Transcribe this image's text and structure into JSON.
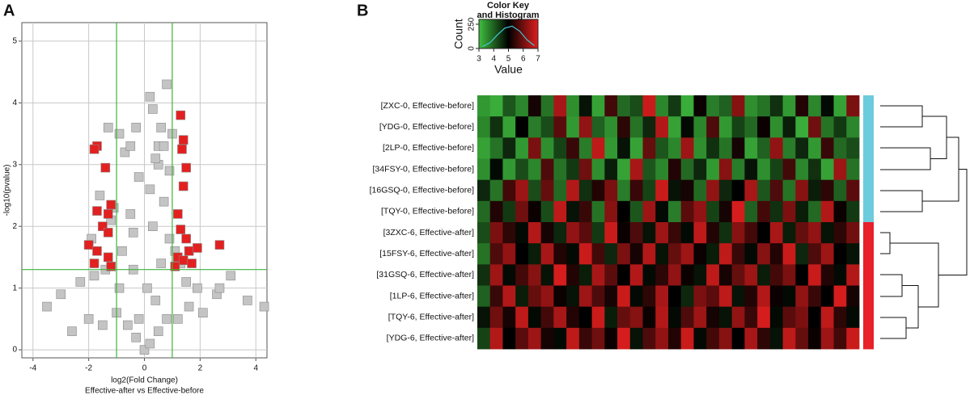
{
  "chart_data": [
    {
      "type": "scatter",
      "panel_label": "A",
      "xlabel": "log2(Fold Change)",
      "subtitle": "Effective-after vs Effective-before",
      "ylabel": "-log10(pvalue)",
      "xlim": [
        -4.4,
        4.4
      ],
      "ylim": [
        -0.13,
        5.3
      ],
      "xticks": [
        -4,
        -2,
        0,
        2,
        4
      ],
      "yticks": [
        0,
        1,
        2,
        3,
        4,
        5
      ],
      "grid": true,
      "thresholds": {
        "x": [
          -1,
          1
        ],
        "y": 1.3,
        "color": "#3cb43c"
      },
      "series": [
        {
          "color": "#c4c4c4",
          "x": [
            0,
            0.2,
            -0.3,
            0.5,
            -0.6,
            0.8,
            -1.0,
            1.2,
            -1.5,
            1.6,
            -2.0,
            2.1,
            -2.6,
            2.6,
            -3.5,
            3.7,
            4.3,
            -3.0,
            3.1,
            2.7,
            -2.3,
            0.1,
            -0.4,
            0.6,
            -0.8,
            0.9,
            0.3,
            -0.5,
            0.7,
            0.2,
            -0.2,
            0.5,
            0.9,
            -1.1,
            -1.2,
            -0.4,
            0.4,
            0.6,
            0.2,
            0.8,
            0.3,
            0.5,
            -0.7,
            -0.5,
            -1.3,
            -0.9,
            -0.3,
            0.7,
            1.0,
            -1.6,
            -1.9,
            1.1,
            1.3,
            -1.4,
            -0.2,
            0.4,
            -0.9,
            1.9,
            -1.8,
            1.5
          ],
          "y": [
            0,
            0.1,
            0.2,
            0.3,
            0.4,
            0.5,
            0.6,
            0.5,
            0.4,
            0.7,
            0.5,
            0.6,
            0.3,
            0.9,
            0.7,
            0.8,
            0.7,
            0.9,
            1.2,
            1.0,
            1.1,
            1.0,
            1.3,
            1.4,
            1.6,
            1.8,
            2.0,
            2.2,
            2.4,
            2.6,
            2.8,
            3.0,
            2.9,
            2.3,
            2.1,
            1.9,
            3.1,
            3.6,
            4.1,
            4.3,
            3.9,
            3.3,
            3.2,
            3.3,
            3.6,
            3.5,
            3.6,
            3.3,
            3.5,
            2.5,
            1.8,
            1.6,
            1.4,
            1.3,
            0.5,
            0.8,
            1.0,
            1.0,
            1.2,
            1.1
          ]
        },
        {
          "color": "#e32020",
          "x": [
            -1.7,
            -1.8,
            -1.4,
            1.3,
            1.4,
            1.35,
            1.5,
            1.4,
            -1.2,
            -1.3,
            -1.7,
            -1.5,
            1.2,
            1.3,
            1.5,
            1.6,
            -2.0,
            -1.7,
            -1.3,
            -1.8,
            -1.2,
            1.2,
            1.4,
            1.7,
            2.7,
            1.1,
            -1.3,
            1.9
          ],
          "y": [
            3.3,
            3.25,
            2.95,
            3.8,
            3.4,
            3.25,
            2.95,
            2.65,
            2.35,
            2.2,
            2.25,
            2.0,
            2.2,
            1.95,
            1.8,
            1.6,
            1.7,
            1.6,
            1.5,
            1.4,
            1.35,
            1.5,
            1.45,
            1.4,
            1.7,
            1.35,
            1.9,
            1.65
          ]
        }
      ]
    },
    {
      "type": "heatmap",
      "panel_label": "B",
      "zlim": [
        3,
        7
      ],
      "colors": [
        "#3fbf3f",
        "#000000",
        "#e01e1e"
      ],
      "row_labels": [
        "[ZXC-0, Effective-before]",
        "[YDG-0, Effective-before]",
        "[2LP-0, Effective-before]",
        "[34FSY-0, Effective-before]",
        "[16GSQ-0, Effective-before]",
        "[TQY-0, Effective-before]",
        "[3ZXC-6, Effective-after]",
        "[15FSY-6, Effective-after]",
        "[31GSQ-6, Effective-after]",
        "[1LP-6, Effective-after]",
        "[TQY-6, Effective-after]",
        "[YDG-6, Effective-after]"
      ],
      "row_colors": [
        "#6ccbdc",
        "#6ccbdc",
        "#6ccbdc",
        "#6ccbdc",
        "#6ccbdc",
        "#6ccbdc",
        "#e8202a",
        "#e8202a",
        "#e8202a",
        "#e8202a",
        "#e8202a",
        "#e8202a"
      ],
      "values": [
        [
          3.4,
          3.2,
          4.1,
          3.6,
          5.2,
          3.8,
          6.5,
          3.5,
          4.8,
          3.3,
          5.6,
          3.9,
          4.2,
          6.8,
          3.6,
          4.4,
          3.2,
          5.1,
          3.7,
          4.0,
          6.2,
          3.5,
          3.8,
          4.5,
          3.4,
          5.3,
          3.6,
          4.9,
          3.3,
          6.1
        ],
        [
          3.6,
          4.5,
          3.3,
          5.0,
          3.7,
          4.2,
          5.8,
          3.4,
          6.3,
          4.0,
          3.5,
          5.4,
          3.8,
          4.6,
          6.6,
          3.3,
          4.9,
          3.6,
          5.7,
          3.4,
          4.3,
          3.9,
          5.1,
          3.5,
          4.7,
          3.2,
          6.0,
          3.8,
          4.4,
          3.6
        ],
        [
          3.3,
          3.8,
          4.6,
          3.4,
          6.1,
          3.5,
          4.3,
          5.5,
          3.7,
          6.7,
          3.4,
          4.8,
          3.3,
          5.9,
          4.1,
          3.6,
          6.4,
          3.5,
          4.5,
          3.8,
          5.2,
          3.3,
          4.0,
          6.3,
          3.7,
          4.6,
          3.4,
          5.5,
          3.9,
          4.2
        ],
        [
          3.5,
          4.9,
          3.4,
          4.2,
          3.6,
          5.7,
          3.8,
          4.4,
          6.0,
          3.5,
          4.7,
          3.3,
          6.5,
          4.1,
          3.6,
          5.3,
          3.9,
          4.6,
          3.4,
          6.2,
          3.7,
          4.8,
          3.5,
          4.3,
          5.6,
          3.6,
          4.5,
          3.3,
          6.4,
          3.8
        ],
        [
          4.6,
          3.8,
          5.6,
          6.4,
          4.2,
          5.9,
          3.9,
          6.6,
          4.5,
          5.3,
          6.1,
          3.7,
          5.5,
          4.3,
          6.8,
          4.8,
          5.2,
          3.9,
          6.3,
          4.6,
          5.0,
          6.5,
          4.1,
          5.7,
          3.8,
          6.2,
          4.7,
          5.4,
          4.0,
          5.8
        ],
        [
          3.9,
          5.3,
          4.4,
          6.0,
          5.1,
          4.2,
          6.7,
          4.8,
          5.5,
          3.8,
          6.2,
          5.0,
          4.1,
          6.4,
          4.9,
          3.7,
          5.8,
          6.3,
          4.3,
          5.2,
          6.9,
          4.0,
          5.6,
          4.5,
          6.1,
          4.7,
          3.9,
          6.6,
          5.1,
          4.4
        ],
        [
          4.2,
          6.1,
          5.4,
          4.9,
          6.6,
          5.2,
          4.6,
          6.3,
          5.8,
          4.4,
          6.8,
          5.1,
          5.7,
          4.8,
          6.4,
          5.5,
          4.9,
          6.7,
          5.3,
          4.5,
          6.2,
          5.6,
          5.0,
          6.5,
          4.7,
          5.9,
          6.3,
          4.8,
          5.4,
          6.0
        ],
        [
          3.8,
          5.7,
          6.3,
          5.0,
          4.7,
          6.5,
          5.3,
          4.9,
          6.8,
          5.6,
          4.6,
          6.1,
          5.2,
          6.6,
          4.8,
          5.9,
          6.4,
          5.1,
          4.7,
          6.7,
          5.5,
          4.9,
          6.2,
          5.3,
          6.8,
          4.6,
          5.7,
          6.4,
          5.0,
          4.8
        ],
        [
          4.5,
          6.4,
          4.9,
          5.6,
          6.2,
          4.8,
          6.9,
          5.3,
          4.7,
          6.5,
          5.8,
          5.0,
          6.6,
          4.9,
          5.4,
          6.3,
          5.1,
          4.8,
          6.7,
          5.2,
          5.9,
          6.4,
          4.7,
          5.6,
          6.1,
          5.0,
          6.8,
          5.3,
          4.9,
          6.6
        ],
        [
          4.0,
          5.5,
          6.6,
          4.7,
          5.9,
          6.3,
          5.1,
          4.8,
          6.4,
          5.7,
          5.2,
          6.8,
          4.9,
          5.4,
          6.5,
          5.0,
          4.6,
          6.1,
          5.8,
          6.7,
          4.8,
          5.3,
          6.6,
          5.1,
          4.9,
          6.3,
          5.5,
          5.0,
          6.9,
          5.2
        ],
        [
          4.8,
          6.0,
          5.2,
          6.7,
          4.9,
          5.6,
          6.5,
          5.3,
          5.0,
          6.8,
          4.7,
          5.9,
          6.2,
          5.1,
          6.6,
          4.9,
          5.7,
          6.4,
          5.2,
          4.8,
          6.3,
          5.5,
          6.9,
          4.9,
          5.8,
          6.1,
          5.0,
          6.7,
          5.4,
          4.9
        ],
        [
          4.3,
          6.6,
          5.0,
          5.8,
          6.4,
          5.2,
          4.9,
          6.7,
          5.5,
          6.0,
          5.1,
          6.9,
          4.8,
          5.7,
          6.3,
          5.3,
          6.8,
          4.9,
          5.6,
          6.2,
          5.0,
          6.5,
          5.4,
          4.8,
          6.7,
          5.9,
          5.1,
          6.4,
          5.6,
          6.8
        ]
      ],
      "color_key": {
        "title": [
          "Color Key",
          "and Histogram"
        ],
        "xlabel": "Value",
        "ylabel": "Count",
        "xlim": [
          3,
          7
        ],
        "xticks": [
          3,
          4,
          5,
          6,
          7
        ],
        "ylim": [
          0,
          300
        ],
        "yticks": [
          0,
          250
        ],
        "line_color": "#3ec9d6",
        "bins": [
          3,
          3.5,
          4,
          4.5,
          5,
          5.5,
          6,
          6.5,
          7
        ],
        "counts": [
          20,
          60,
          140,
          210,
          230,
          180,
          90,
          30
        ]
      }
    }
  ]
}
